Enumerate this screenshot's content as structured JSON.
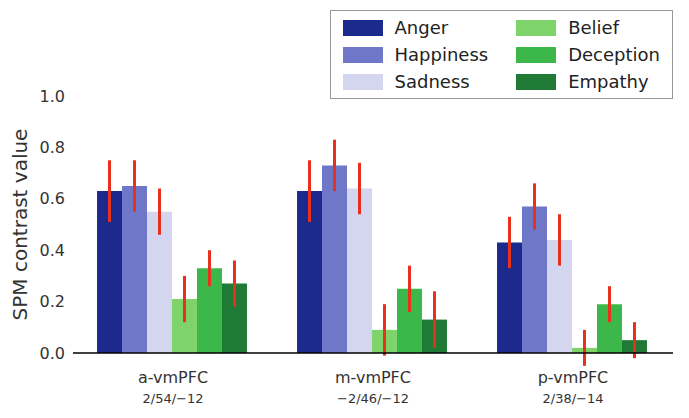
{
  "chart_data": {
    "type": "bar",
    "y_label": "SPM contrast value",
    "categories": [
      "a-vmPFC",
      "m-vmPFC",
      "p-vmPFC"
    ],
    "category_coordinates": [
      "2/54/−12",
      "−2/46/−12",
      "2/38/−14"
    ],
    "series": [
      {
        "name": "Anger",
        "color": "#1b2a8c",
        "values": [
          0.63,
          0.63,
          0.43
        ],
        "errors": [
          0.12,
          0.12,
          0.1
        ]
      },
      {
        "name": "Happiness",
        "color": "#6f78c8",
        "values": [
          0.65,
          0.73,
          0.57
        ],
        "errors": [
          0.1,
          0.1,
          0.09
        ]
      },
      {
        "name": "Sadness",
        "color": "#d3d6ee",
        "values": [
          0.55,
          0.64,
          0.44
        ],
        "errors": [
          0.09,
          0.1,
          0.1
        ]
      },
      {
        "name": "Belief",
        "color": "#7fd36b",
        "values": [
          0.21,
          0.09,
          0.02
        ],
        "errors": [
          0.09,
          0.1,
          0.07
        ]
      },
      {
        "name": "Deception",
        "color": "#3cb84a",
        "values": [
          0.33,
          0.25,
          0.19
        ],
        "errors": [
          0.07,
          0.09,
          0.07
        ]
      },
      {
        "name": "Empathy",
        "color": "#1f7a36",
        "values": [
          0.27,
          0.13,
          0.05
        ],
        "errors": [
          0.09,
          0.11,
          0.07
        ]
      }
    ],
    "ylim": [
      0,
      1.0
    ],
    "yticks": [
      {
        "value": 0,
        "label": "0.0"
      },
      0.2,
      0.4,
      0.6,
      0.8,
      {
        "value": 1,
        "label": "1.0"
      }
    ],
    "legend": "upper right",
    "grid": false
  }
}
